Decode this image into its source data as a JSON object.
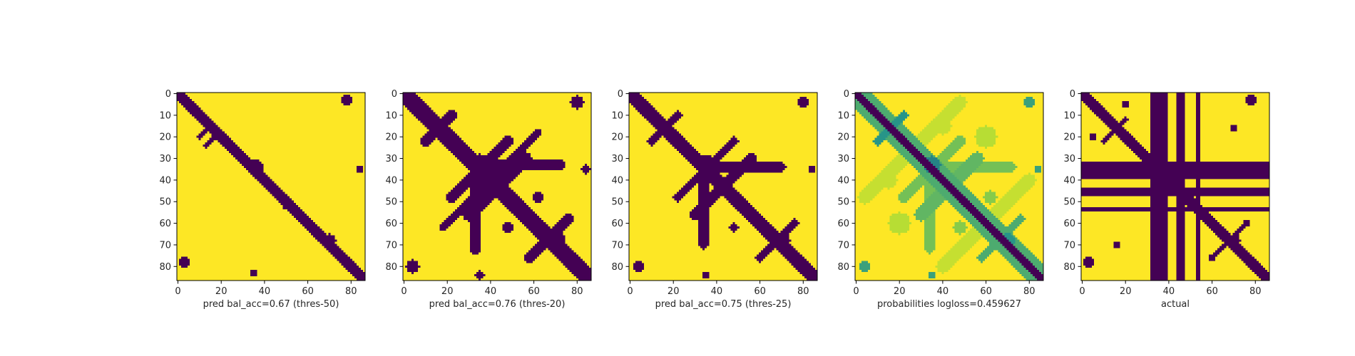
{
  "figure": {
    "colors": {
      "low": "#440154",
      "mid_dark": "#21918c",
      "mid_light": "#a0da39",
      "high": "#fde725",
      "axis": "#000000"
    }
  },
  "chart_data": [
    {
      "type": "heatmap",
      "title": "",
      "xlabel": "pred bal_acc=0.67 (thres-50)",
      "ylabel": "",
      "matrix_size": 87,
      "xlim": [
        0,
        86
      ],
      "ylim": [
        86,
        0
      ],
      "x_ticks": [
        0,
        20,
        40,
        60,
        80
      ],
      "y_ticks": [
        0,
        10,
        20,
        30,
        40,
        50,
        60,
        70,
        80
      ],
      "colormap": "viridis",
      "value_range": [
        0,
        1
      ],
      "background_value": 1,
      "contact_value": 0,
      "bands": [
        {
          "from": [
            0,
            0
          ],
          "to": [
            86,
            86
          ],
          "width": 2.5,
          "value": 0
        },
        {
          "from": [
            10,
            20
          ],
          "to": [
            16,
            14
          ],
          "width": 1.0,
          "value": 0
        },
        {
          "from": [
            13,
            24
          ],
          "to": [
            19,
            18
          ],
          "width": 1.0,
          "value": 0
        }
      ],
      "blobs": [
        {
          "cx": 36,
          "cy": 34,
          "r": 3.5,
          "value": 0
        },
        {
          "cx": 70,
          "cy": 68,
          "r": 3.0,
          "value": 0
        },
        {
          "cx": 3,
          "cy": 78,
          "r": 2.5,
          "value": 0
        },
        {
          "cx": 78,
          "cy": 3,
          "r": 2.5,
          "value": 0
        },
        {
          "cx": 84,
          "cy": 35,
          "r": 1.5,
          "value": 0
        },
        {
          "cx": 35,
          "cy": 83,
          "r": 1.5,
          "value": 0
        },
        {
          "cx": 50,
          "cy": 52,
          "r": 1.5,
          "value": 0
        }
      ]
    },
    {
      "type": "heatmap",
      "title": "",
      "xlabel": "pred bal_acc=0.76 (thres-20)",
      "ylabel": "",
      "matrix_size": 87,
      "xlim": [
        0,
        86
      ],
      "ylim": [
        86,
        0
      ],
      "x_ticks": [
        0,
        20,
        40,
        60,
        80
      ],
      "y_ticks": [
        0,
        10,
        20,
        30,
        40,
        50,
        60,
        70,
        80
      ],
      "colormap": "viridis",
      "value_range": [
        0,
        1
      ],
      "background_value": 1,
      "contact_value": 0,
      "bands": [
        {
          "from": [
            0,
            0
          ],
          "to": [
            86,
            86
          ],
          "width": 4.0,
          "value": 0
        },
        {
          "from": [
            10,
            22
          ],
          "to": [
            22,
            10
          ],
          "width": 2.5,
          "value": 0
        },
        {
          "from": [
            22,
            48
          ],
          "to": [
            48,
            22
          ],
          "width": 2.5,
          "value": 0
        },
        {
          "from": [
            30,
            56
          ],
          "to": [
            56,
            30
          ],
          "width": 3.0,
          "value": 0
        },
        {
          "from": [
            36,
            33
          ],
          "to": [
            72,
            33
          ],
          "width": 2.5,
          "value": 0
        },
        {
          "from": [
            33,
            36
          ],
          "to": [
            33,
            72
          ],
          "width": 2.5,
          "value": 0
        },
        {
          "from": [
            58,
            76
          ],
          "to": [
            76,
            58
          ],
          "width": 2.5,
          "value": 0
        },
        {
          "from": [
            18,
            62
          ],
          "to": [
            62,
            18
          ],
          "width": 1.5,
          "value": 0
        }
      ],
      "blobs": [
        {
          "cx": 35,
          "cy": 33,
          "r": 5.0,
          "value": 0
        },
        {
          "cx": 70,
          "cy": 68,
          "r": 4.5,
          "value": 0
        },
        {
          "cx": 55,
          "cy": 55,
          "r": 4.0,
          "value": 0
        },
        {
          "cx": 4,
          "cy": 80,
          "r": 3.0,
          "value": 0
        },
        {
          "cx": 80,
          "cy": 4,
          "r": 3.0,
          "value": 0
        },
        {
          "cx": 84,
          "cy": 35,
          "r": 2.0,
          "value": 0
        },
        {
          "cx": 35,
          "cy": 84,
          "r": 2.0,
          "value": 0
        },
        {
          "cx": 48,
          "cy": 62,
          "r": 2.5,
          "value": 0
        },
        {
          "cx": 62,
          "cy": 48,
          "r": 2.5,
          "value": 0
        }
      ]
    },
    {
      "type": "heatmap",
      "title": "",
      "xlabel": "pred bal_acc=0.75 (thres-25)",
      "ylabel": "",
      "matrix_size": 87,
      "xlim": [
        0,
        86
      ],
      "ylim": [
        86,
        0
      ],
      "x_ticks": [
        0,
        20,
        40,
        60,
        80
      ],
      "y_ticks": [
        0,
        10,
        20,
        30,
        40,
        50,
        60,
        70,
        80
      ],
      "colormap": "viridis",
      "value_range": [
        0,
        1
      ],
      "background_value": 1,
      "contact_value": 0,
      "bands": [
        {
          "from": [
            0,
            0
          ],
          "to": [
            86,
            86
          ],
          "width": 3.5,
          "value": 0
        },
        {
          "from": [
            10,
            22
          ],
          "to": [
            22,
            10
          ],
          "width": 2.0,
          "value": 0
        },
        {
          "from": [
            22,
            48
          ],
          "to": [
            48,
            22
          ],
          "width": 2.0,
          "value": 0
        },
        {
          "from": [
            30,
            56
          ],
          "to": [
            56,
            30
          ],
          "width": 2.5,
          "value": 0
        },
        {
          "from": [
            36,
            34
          ],
          "to": [
            70,
            34
          ],
          "width": 2.0,
          "value": 0
        },
        {
          "from": [
            34,
            36
          ],
          "to": [
            34,
            70
          ],
          "width": 2.0,
          "value": 0
        },
        {
          "from": [
            60,
            76
          ],
          "to": [
            76,
            60
          ],
          "width": 2.0,
          "value": 0
        }
      ],
      "blobs": [
        {
          "cx": 35,
          "cy": 33,
          "r": 4.5,
          "value": 0
        },
        {
          "cx": 70,
          "cy": 68,
          "r": 4.0,
          "value": 0
        },
        {
          "cx": 55,
          "cy": 55,
          "r": 3.5,
          "value": 0
        },
        {
          "cx": 4,
          "cy": 80,
          "r": 2.5,
          "value": 0
        },
        {
          "cx": 80,
          "cy": 4,
          "r": 2.5,
          "value": 0
        },
        {
          "cx": 84,
          "cy": 35,
          "r": 1.5,
          "value": 0
        },
        {
          "cx": 35,
          "cy": 84,
          "r": 1.5,
          "value": 0
        },
        {
          "cx": 48,
          "cy": 62,
          "r": 2.0,
          "value": 0
        }
      ]
    },
    {
      "type": "heatmap",
      "title": "",
      "xlabel": "probabilities logloss=0.459627",
      "ylabel": "",
      "matrix_size": 87,
      "xlim": [
        0,
        86
      ],
      "ylim": [
        86,
        0
      ],
      "x_ticks": [
        0,
        20,
        40,
        60,
        80
      ],
      "y_ticks": [
        0,
        10,
        20,
        30,
        40,
        50,
        60,
        70,
        80
      ],
      "colormap": "viridis",
      "value_range": [
        0,
        1
      ],
      "background_value": 1,
      "contact_value": 0,
      "bands": [
        {
          "from": [
            0,
            0
          ],
          "to": [
            86,
            86
          ],
          "width": 2.0,
          "value": 0.0
        },
        {
          "from": [
            0,
            0
          ],
          "to": [
            86,
            86
          ],
          "width": 5.5,
          "value": 0.45
        },
        {
          "from": [
            10,
            22
          ],
          "to": [
            22,
            10
          ],
          "width": 2.0,
          "value": 0.35
        },
        {
          "from": [
            22,
            48
          ],
          "to": [
            48,
            22
          ],
          "width": 2.5,
          "value": 0.55
        },
        {
          "from": [
            30,
            56
          ],
          "to": [
            56,
            30
          ],
          "width": 3.0,
          "value": 0.5
        },
        {
          "from": [
            36,
            34
          ],
          "to": [
            72,
            34
          ],
          "width": 2.0,
          "value": 0.55
        },
        {
          "from": [
            34,
            36
          ],
          "to": [
            34,
            72
          ],
          "width": 2.0,
          "value": 0.55
        },
        {
          "from": [
            58,
            76
          ],
          "to": [
            76,
            58
          ],
          "width": 2.0,
          "value": 0.45
        },
        {
          "from": [
            4,
            48
          ],
          "to": [
            48,
            4
          ],
          "width": 3.0,
          "value": 0.8
        },
        {
          "from": [
            40,
            80
          ],
          "to": [
            80,
            40
          ],
          "width": 3.0,
          "value": 0.8
        }
      ],
      "blobs": [
        {
          "cx": 35,
          "cy": 33,
          "r": 4.0,
          "value": 0.3
        },
        {
          "cx": 70,
          "cy": 68,
          "r": 3.5,
          "value": 0.35
        },
        {
          "cx": 55,
          "cy": 55,
          "r": 4.0,
          "value": 0.55
        },
        {
          "cx": 4,
          "cy": 80,
          "r": 2.5,
          "value": 0.4
        },
        {
          "cx": 80,
          "cy": 4,
          "r": 2.5,
          "value": 0.4
        },
        {
          "cx": 84,
          "cy": 35,
          "r": 1.5,
          "value": 0.4
        },
        {
          "cx": 35,
          "cy": 84,
          "r": 1.5,
          "value": 0.4
        },
        {
          "cx": 20,
          "cy": 60,
          "r": 5.0,
          "value": 0.75
        },
        {
          "cx": 60,
          "cy": 20,
          "r": 5.0,
          "value": 0.75
        },
        {
          "cx": 48,
          "cy": 62,
          "r": 3.0,
          "value": 0.6
        },
        {
          "cx": 62,
          "cy": 48,
          "r": 3.0,
          "value": 0.6
        },
        {
          "cx": 15,
          "cy": 40,
          "r": 4.0,
          "value": 0.8
        },
        {
          "cx": 40,
          "cy": 15,
          "r": 4.0,
          "value": 0.8
        }
      ]
    },
    {
      "type": "heatmap",
      "title": "",
      "xlabel": "actual",
      "ylabel": "",
      "matrix_size": 87,
      "xlim": [
        0,
        86
      ],
      "ylim": [
        86,
        0
      ],
      "x_ticks": [
        0,
        20,
        40,
        60,
        80
      ],
      "y_ticks": [
        0,
        10,
        20,
        30,
        40,
        50,
        60,
        70,
        80
      ],
      "colormap": "viridis",
      "value_range": [
        0,
        1
      ],
      "background_value": 1,
      "contact_value": 0,
      "stripes": [
        {
          "axis": "col",
          "from": 32,
          "to": 39,
          "value": 0
        },
        {
          "axis": "col",
          "from": 44,
          "to": 47,
          "value": 0
        },
        {
          "axis": "col",
          "from": 53,
          "to": 54,
          "value": 0
        },
        {
          "axis": "row",
          "from": 32,
          "to": 39,
          "value": 0
        },
        {
          "axis": "row",
          "from": 44,
          "to": 47,
          "value": 0
        },
        {
          "axis": "row",
          "from": 53,
          "to": 54,
          "value": 0
        }
      ],
      "bands": [
        {
          "from": [
            0,
            0
          ],
          "to": [
            86,
            86
          ],
          "width": 2.5,
          "value": 0
        },
        {
          "from": [
            10,
            22
          ],
          "to": [
            20,
            12
          ],
          "width": 1.0,
          "value": 0
        },
        {
          "from": [
            60,
            76
          ],
          "to": [
            74,
            62
          ],
          "width": 1.0,
          "value": 0
        }
      ],
      "blobs": [
        {
          "cx": 70,
          "cy": 68,
          "r": 3.0,
          "value": 0
        },
        {
          "cx": 3,
          "cy": 78,
          "r": 2.5,
          "value": 0
        },
        {
          "cx": 78,
          "cy": 3,
          "r": 2.5,
          "value": 0
        },
        {
          "cx": 60,
          "cy": 76,
          "r": 1.5,
          "value": 0
        },
        {
          "cx": 76,
          "cy": 60,
          "r": 1.5,
          "value": 0
        },
        {
          "cx": 16,
          "cy": 70,
          "r": 1.5,
          "value": 0
        },
        {
          "cx": 70,
          "cy": 16,
          "r": 1.5,
          "value": 0
        },
        {
          "cx": 20,
          "cy": 5,
          "r": 1.5,
          "value": 0
        },
        {
          "cx": 5,
          "cy": 20,
          "r": 1.5,
          "value": 0
        }
      ]
    }
  ]
}
